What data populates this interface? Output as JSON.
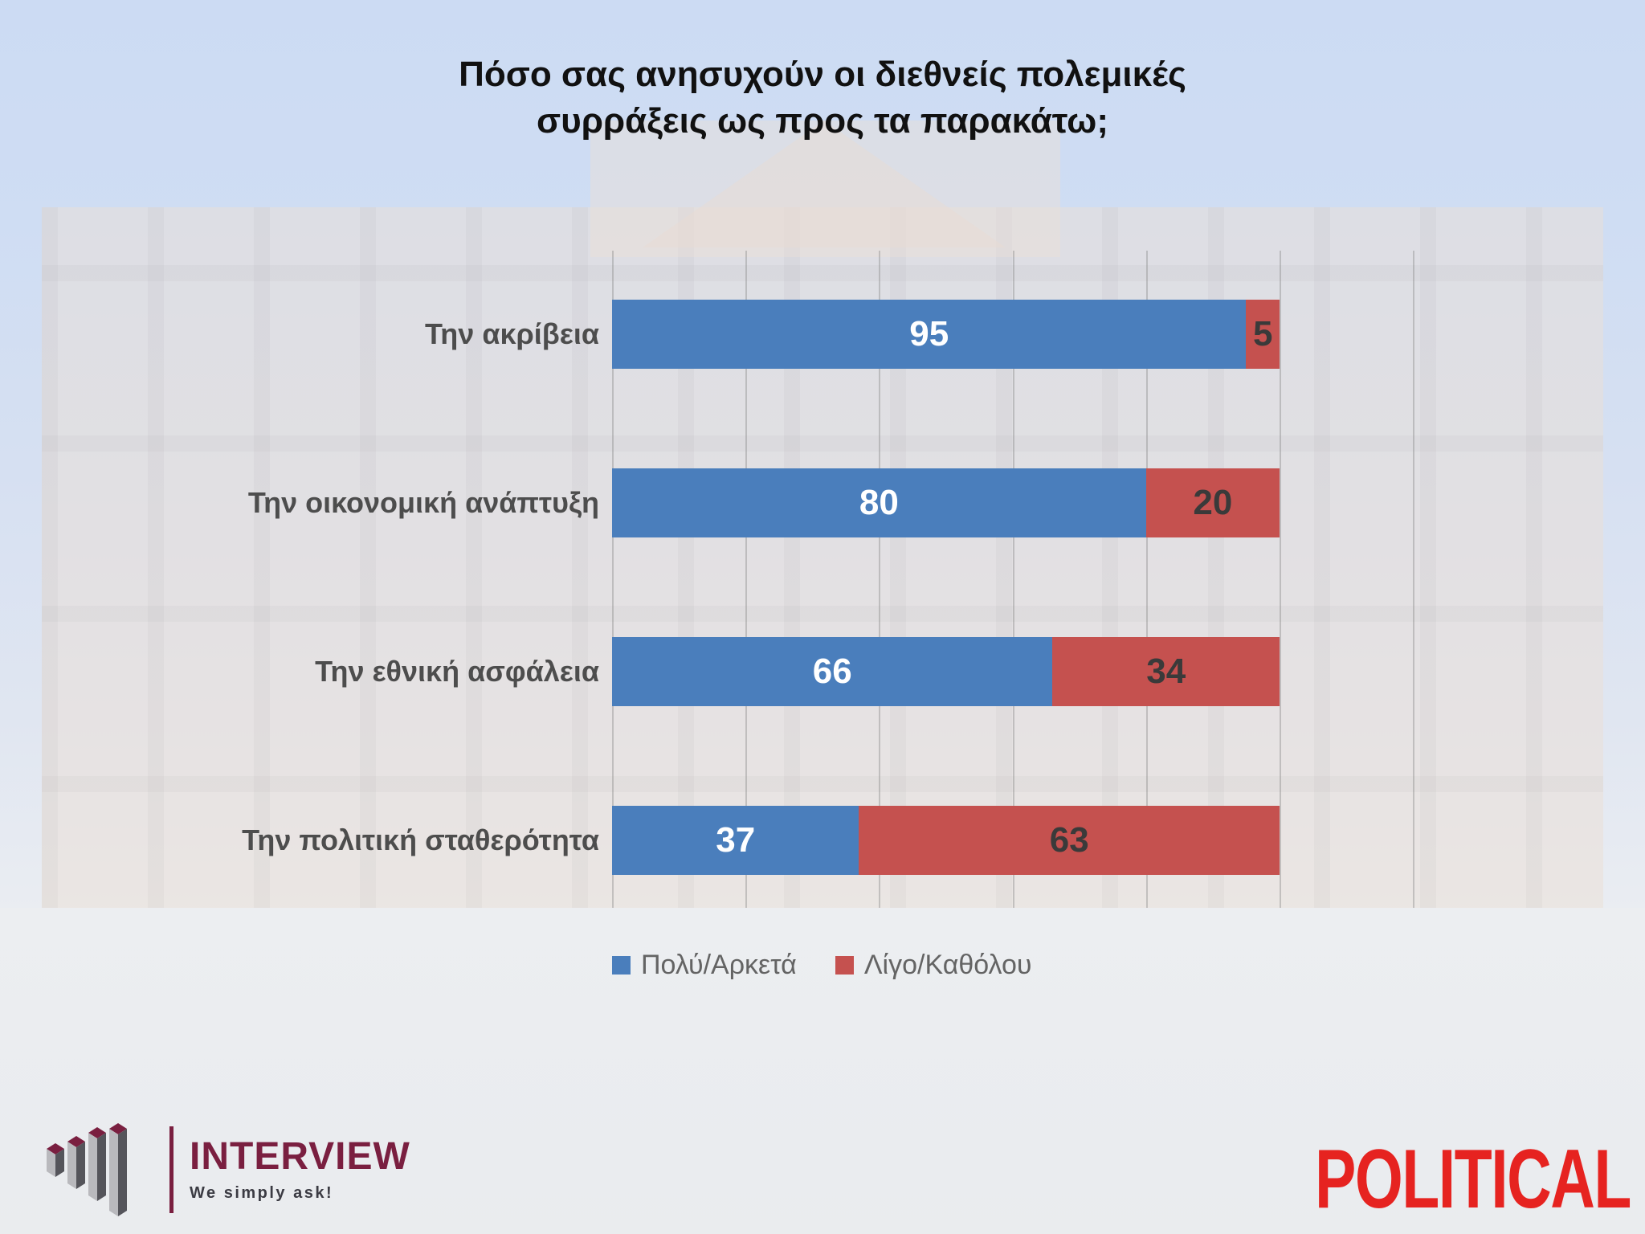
{
  "title": {
    "line1": "Πόσο σας ανησυχούν οι διεθνείς πολεμικές",
    "line2": "συρράξεις ως προς τα παρακάτω;"
  },
  "chart_data": {
    "type": "bar",
    "orientation": "horizontal",
    "stacked": true,
    "title": "Πόσο σας ανησυχούν οι διεθνείς πολεμικές συρράξεις ως προς τα παρακάτω;",
    "categories": [
      "Την ακρίβεια",
      "Την οικονομική ανάπτυξη",
      "Την εθνική ασφάλεια",
      "Την πολιτική σταθερότητα"
    ],
    "series": [
      {
        "name": "Πολύ/Αρκετά",
        "color": "#4a7ebc",
        "values": [
          95,
          80,
          66,
          37
        ]
      },
      {
        "name": "Λίγο/Καθόλου",
        "color": "#c5514f",
        "values": [
          5,
          20,
          34,
          63
        ]
      }
    ],
    "xlabel": "",
    "ylabel": "",
    "xlim": [
      0,
      120
    ],
    "gridline_interval": 20,
    "grid": true,
    "legend_position": "bottom"
  },
  "branding": {
    "interview": {
      "name": "INTERVIEW",
      "tagline": "We simply ask!",
      "color": "#7a1f40"
    },
    "political": {
      "name": "POLITICAL",
      "color": "#e62320"
    }
  }
}
